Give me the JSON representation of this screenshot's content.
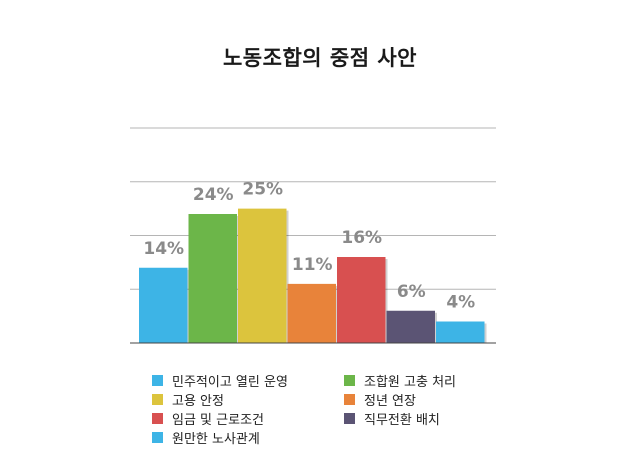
{
  "chart_data": {
    "type": "bar",
    "title": "노동조합의 중점 사안",
    "xlabel": "",
    "ylabel": "",
    "ylim": [
      0,
      40
    ],
    "grid": true,
    "legend_position": "bottom",
    "categories": [
      "민주적이고 열린 운영",
      "조합원 고충 처리",
      "고용 안정",
      "정년 연장",
      "임금 및 근로조건",
      "직무전환 배치",
      "원만한 노사관계"
    ],
    "values": [
      14,
      24,
      25,
      11,
      16,
      6,
      4
    ],
    "data_labels": [
      "14%",
      "24%",
      "25%",
      "11%",
      "16%",
      "6%",
      "4%"
    ],
    "colors": [
      "#3db4e6",
      "#6cb649",
      "#dcc43d",
      "#e8833a",
      "#d85050",
      "#5b5474",
      "#3db4e6"
    ],
    "legend_order": [
      0,
      1,
      2,
      3,
      4,
      5,
      6
    ]
  }
}
